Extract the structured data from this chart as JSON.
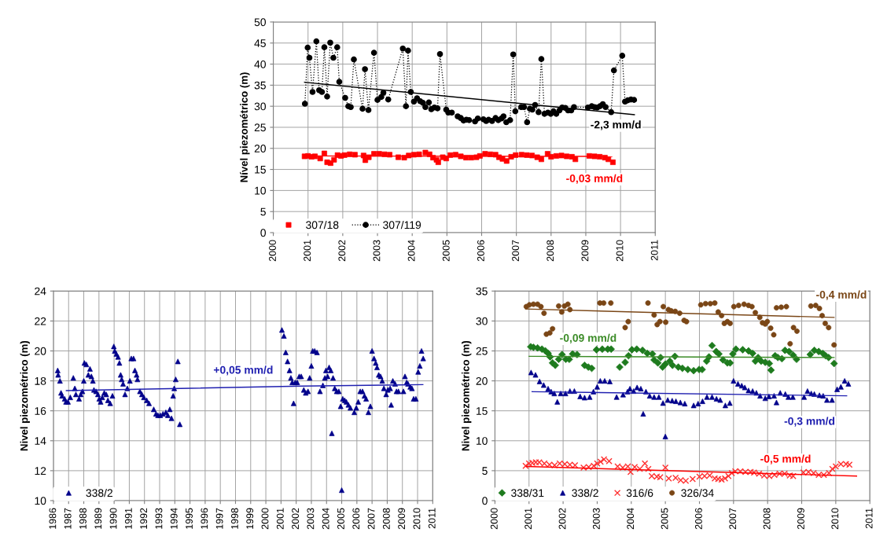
{
  "chart_data": [
    {
      "type": "scatter",
      "ylabel": "Nível piezométrico (m)",
      "xlim": [
        2000,
        2011
      ],
      "xticks": [
        2000,
        2001,
        2002,
        2003,
        2004,
        2005,
        2006,
        2007,
        2008,
        2009,
        2010,
        2011
      ],
      "ylim": [
        0,
        50
      ],
      "yticks": [
        0,
        5,
        10,
        15,
        20,
        25,
        30,
        35,
        40,
        45,
        50
      ],
      "grid": true,
      "legend": "bottom left",
      "series": [
        {
          "name": "307/18",
          "color": "#ff0000",
          "marker": "square",
          "x": [
            2000.9,
            2001.0,
            2001.1,
            2001.2,
            2001.35,
            2001.47,
            2001.55,
            2001.65,
            2001.75,
            2001.85,
            2001.95,
            2002.05,
            2002.2,
            2002.35,
            2002.6,
            2002.65,
            2002.75,
            2002.9,
            2003.05,
            2003.2,
            2003.35,
            2003.6,
            2003.77,
            2003.9,
            2004.05,
            2004.2,
            2004.38,
            2004.5,
            2004.6,
            2004.7,
            2004.75,
            2004.88,
            2004.98,
            2005.1,
            2005.25,
            2005.4,
            2005.55,
            2005.7,
            2005.85,
            2005.95,
            2006.1,
            2006.25,
            2006.4,
            2006.5,
            2006.6,
            2006.72,
            2006.85,
            2006.98,
            2007.15,
            2007.3,
            2007.45,
            2007.6,
            2007.72,
            2007.9,
            2008.0,
            2008.15,
            2008.3,
            2008.45,
            2008.6,
            2008.7,
            2009.1,
            2009.25,
            2009.4,
            2009.55,
            2009.65,
            2009.78
          ],
          "values": [
            18.1,
            18.2,
            18.0,
            18.1,
            17.6,
            18.8,
            16.7,
            16.5,
            17.3,
            18.4,
            18.2,
            18.4,
            18.6,
            18.5,
            18.3,
            17.2,
            17.9,
            18.7,
            18.7,
            18.6,
            18.5,
            17.9,
            17.8,
            18.3,
            18.5,
            18.6,
            19.0,
            18.6,
            17.8,
            17.3,
            16.7,
            17.9,
            17.6,
            18.4,
            18.5,
            18.1,
            17.8,
            17.8,
            17.9,
            18.2,
            18.7,
            18.6,
            18.5,
            17.9,
            17.5,
            17.0,
            18.0,
            18.4,
            18.5,
            18.4,
            18.3,
            17.9,
            17.4,
            18.7,
            18.0,
            18.2,
            18.3,
            18.1,
            18.0,
            17.4,
            18.2,
            18.1,
            18.0,
            17.8,
            17.4,
            16.7
          ]
        },
        {
          "name": "307/119",
          "type": "line",
          "color": "#000000",
          "marker": "circle",
          "line_style": "dotted",
          "x": [
            2000.91,
            2000.99,
            2001.04,
            2001.13,
            2001.24,
            2001.32,
            2001.4,
            2001.47,
            2001.55,
            2001.64,
            2001.73,
            2001.84,
            2001.9,
            2002.07,
            2002.16,
            2002.23,
            2002.32,
            2002.57,
            2002.64,
            2002.74,
            2002.9,
            2003.0,
            2003.11,
            2003.17,
            2003.31,
            2003.73,
            2003.82,
            2003.88,
            2003.96,
            2004.05,
            2004.14,
            2004.23,
            2004.31,
            2004.38,
            2004.48,
            2004.55,
            2004.64,
            2004.73,
            2004.8,
            2004.98,
            2005.04,
            2005.14,
            2005.31,
            2005.4,
            2005.48,
            2005.56,
            2005.64,
            2005.81,
            2005.89,
            2006.05,
            2006.13,
            2006.2,
            2006.3,
            2006.4,
            2006.48,
            2006.57,
            2006.63,
            2006.71,
            2006.82,
            2006.91,
            2006.97,
            2007.14,
            2007.22,
            2007.31,
            2007.39,
            2007.46,
            2007.54,
            2007.64,
            2007.72,
            2007.81,
            2007.91,
            2007.99,
            2008.07,
            2008.15,
            2008.24,
            2008.32,
            2008.41,
            2008.49,
            2008.58,
            2008.66,
            2009.06,
            2009.17,
            2009.25,
            2009.33,
            2009.41,
            2009.49,
            2009.57,
            2009.73,
            2009.81,
            2010.05,
            2010.13,
            2010.21,
            2010.3,
            2010.39
          ],
          "values": [
            30.6,
            43.9,
            41.5,
            33.4,
            45.4,
            33.8,
            33.4,
            44.0,
            32.3,
            45.1,
            41.5,
            44.0,
            35.8,
            32.0,
            30.0,
            29.8,
            41.1,
            29.4,
            38.8,
            29.1,
            42.7,
            31.5,
            32.2,
            33.2,
            31.6,
            43.7,
            30.0,
            43.2,
            33.4,
            31.1,
            31.9,
            31.2,
            30.8,
            29.8,
            30.9,
            29.3,
            29.7,
            29.5,
            42.4,
            29.2,
            28.5,
            28.5,
            27.6,
            27.2,
            26.6,
            26.8,
            26.7,
            26.4,
            27.1,
            26.9,
            26.5,
            26.8,
            26.5,
            27.2,
            26.7,
            27.1,
            27.6,
            26.2,
            26.7,
            42.3,
            28.8,
            29.8,
            29.8,
            26.2,
            29.4,
            29.2,
            30.3,
            28.6,
            41.2,
            28.2,
            28.5,
            28.2,
            28.8,
            28.2,
            29.0,
            29.7,
            29.6,
            29.0,
            29.0,
            29.8,
            29.7,
            30.0,
            29.8,
            29.7,
            30.0,
            30.5,
            29.8,
            28.6,
            38.5,
            42.0,
            31.1,
            31.4,
            31.6,
            31.5
          ]
        },
        {
          "name": "-2,3 mm/d",
          "type": "line",
          "color": "#000000",
          "marker": "none",
          "line_style": "solid",
          "x": [
            2000.9,
            2010.4
          ],
          "values": [
            35.7,
            28.0
          ]
        },
        {
          "name": "-0,03 mm/d",
          "type": "line",
          "color": "#ff0000",
          "marker": "none",
          "line_style": "solid",
          "x": [
            2000.9,
            2009.75
          ],
          "values": [
            18.2,
            18.1
          ]
        }
      ]
    },
    {
      "type": "scatter",
      "ylabel": "Nivel piezométrico (m)",
      "xlim": [
        1986,
        2011
      ],
      "xticks": [
        1986,
        1987,
        1988,
        1989,
        1990,
        1991,
        1992,
        1993,
        1994,
        1995,
        1996,
        1997,
        1998,
        1999,
        2000,
        2001,
        2002,
        2003,
        2004,
        2005,
        2006,
        2007,
        2008,
        2009,
        2010,
        2011
      ],
      "ylim": [
        10,
        24
      ],
      "yticks": [
        10,
        12,
        14,
        16,
        18,
        20,
        22,
        24
      ],
      "grid": true,
      "legend": "bottom left",
      "series": [
        {
          "name": "338/2",
          "color": "#00008b",
          "marker": "triangle",
          "x": [
            1986.28,
            1986.31,
            1986.43,
            1986.5,
            1986.57,
            1986.74,
            1986.83,
            1986.96,
            1987.11,
            1987.31,
            1987.41,
            1987.48,
            1987.69,
            1987.8,
            1987.91,
            1988.0,
            1988.04,
            1988.17,
            1988.3,
            1988.41,
            1988.5,
            1988.6,
            1988.67,
            1988.81,
            1988.93,
            1989.02,
            1989.11,
            1989.22,
            1989.35,
            1989.48,
            1989.59,
            1989.74,
            1989.89,
            1989.98,
            1990.04,
            1990.15,
            1990.26,
            1990.35,
            1990.43,
            1990.5,
            1990.59,
            1990.72,
            1990.87,
            1991.04,
            1991.13,
            1991.28,
            1991.37,
            1991.48,
            1991.54,
            1991.7,
            1991.83,
            1991.96,
            1992.15,
            1992.3,
            1992.61,
            1992.76,
            1992.89,
            1993.04,
            1993.22,
            1993.41,
            1993.54,
            1993.67,
            1993.78,
            1993.89,
            1993.96,
            1994.06,
            1994.2,
            1994.33,
            2001.06,
            2001.19,
            2001.31,
            2001.43,
            2001.56,
            2001.65,
            2001.74,
            2001.83,
            2001.93,
            2002.07,
            2002.2,
            2002.33,
            2002.5,
            2002.63,
            2002.78,
            2002.89,
            2003.0,
            2003.09,
            2003.22,
            2003.37,
            2003.57,
            2003.76,
            2003.89,
            2003.96,
            2004.07,
            2004.17,
            2004.28,
            2004.35,
            2004.43,
            2004.54,
            2004.67,
            2004.81,
            2004.93,
            2005.0,
            2005.07,
            2005.2,
            2005.31,
            2005.44,
            2005.57,
            2005.83,
            2005.96,
            2006.09,
            2006.22,
            2006.37,
            2006.5,
            2006.61,
            2006.76,
            2006.89,
            2007.0,
            2007.13,
            2007.24,
            2007.33,
            2007.44,
            2007.56,
            2007.67,
            2007.78,
            2007.93,
            2008.04,
            2008.19,
            2008.26,
            2008.37,
            2008.52,
            2008.61,
            2008.74,
            2009.07,
            2009.17,
            2009.28,
            2009.37,
            2009.52,
            2009.63,
            2009.74,
            2009.89,
            2010.04,
            2010.15,
            2010.26,
            2010.37
          ],
          "values": [
            18.7,
            18.4,
            18.0,
            17.2,
            17.0,
            16.8,
            16.6,
            16.6,
            16.9,
            18.2,
            17.5,
            17.1,
            16.8,
            17.1,
            17.3,
            18.0,
            19.2,
            19.1,
            18.4,
            18.8,
            18.3,
            18.0,
            17.4,
            17.3,
            17.1,
            16.8,
            16.6,
            16.9,
            17.2,
            17.1,
            16.7,
            16.5,
            17.0,
            20.3,
            20.0,
            19.8,
            19.6,
            19.2,
            18.4,
            18.1,
            17.8,
            17.1,
            17.5,
            18.0,
            19.5,
            19.5,
            18.7,
            18.4,
            18.1,
            17.3,
            17.1,
            16.9,
            16.7,
            16.5,
            16.1,
            15.8,
            15.7,
            15.7,
            15.8,
            15.9,
            15.7,
            16.1,
            15.5,
            17.0,
            17.5,
            18.1,
            19.3,
            15.1,
            21.4,
            21.0,
            19.9,
            19.3,
            18.7,
            18.2,
            17.9,
            16.5,
            17.9,
            17.9,
            18.3,
            18.3,
            17.4,
            17.2,
            17.3,
            18.2,
            19.0,
            20.0,
            20.0,
            19.9,
            17.3,
            17.7,
            18.2,
            18.7,
            18.3,
            18.9,
            18.7,
            14.5,
            18.2,
            17.5,
            17.3,
            17.3,
            16.3,
            10.7,
            16.8,
            16.7,
            16.6,
            16.4,
            16.2,
            15.9,
            16.2,
            16.6,
            17.3,
            17.3,
            17.0,
            16.8,
            15.9,
            16.3,
            20.0,
            19.5,
            19.2,
            18.9,
            18.4,
            18.3,
            18.0,
            17.5,
            17.1,
            17.4,
            17.5,
            16.4,
            18.0,
            17.8,
            17.3,
            17.3,
            17.3,
            18.3,
            17.9,
            17.8,
            17.6,
            17.5,
            16.8,
            16.8,
            18.6,
            19.0,
            20.0,
            19.5
          ]
        },
        {
          "name": "+0,05 mm/d",
          "type": "line",
          "color": "#2020b0",
          "marker": "none",
          "line_style": "solid",
          "x": [
            1986.85,
            2002.4,
            2010.35
          ],
          "values": [
            17.35,
            17.65,
            17.75
          ]
        }
      ]
    },
    {
      "type": "scatter",
      "ylabel": "Nivel piezométrico (m)",
      "xlim": [
        2000,
        2011
      ],
      "xticks": [
        2000,
        2001,
        2002,
        2003,
        2004,
        2005,
        2006,
        2007,
        2008,
        2009,
        2010,
        2011
      ],
      "ylim": [
        0,
        35
      ],
      "yticks": [
        0,
        5,
        10,
        15,
        20,
        25,
        30,
        35
      ],
      "grid": true,
      "legend": "bottom left",
      "series": [
        {
          "name": "338/31",
          "color": "#1e7b1e",
          "marker": "diamond",
          "x": [
            2001.05,
            2001.13,
            2001.25,
            2001.38,
            2001.48,
            2001.56,
            2001.62,
            2001.69,
            2001.77,
            2001.87,
            2001.97,
            2002.08,
            2002.18,
            2002.28,
            2002.41,
            2002.63,
            2002.74,
            2002.84,
            2002.98,
            2003.15,
            2003.31,
            2003.41,
            2003.66,
            2003.82,
            2003.92,
            2004.02,
            2004.16,
            2004.33,
            2004.47,
            2004.62,
            2004.67,
            2004.78,
            2004.86,
            2004.92,
            2005.0,
            2005.13,
            2005.21,
            2005.28,
            2005.38,
            2005.5,
            2005.66,
            2005.83,
            2005.99,
            2006.08,
            2006.21,
            2006.28,
            2006.37,
            2006.49,
            2006.57,
            2006.69,
            2006.82,
            2006.9,
            2006.98,
            2007.07,
            2007.27,
            2007.44,
            2007.56,
            2007.64,
            2007.72,
            2007.81,
            2007.93,
            2008.05,
            2008.1,
            2008.22,
            2008.3,
            2008.42,
            2008.51,
            2008.63,
            2008.75,
            2008.85,
            2009.25,
            2009.37,
            2009.5,
            2009.62,
            2009.7,
            2009.79,
            2009.95
          ],
          "values": [
            25.7,
            25.6,
            25.5,
            25.3,
            25.0,
            24.6,
            24.0,
            23.0,
            22.6,
            23.6,
            24.4,
            23.6,
            23.6,
            24.5,
            24.4,
            22.6,
            22.3,
            22.1,
            25.2,
            25.3,
            25.3,
            25.3,
            22.3,
            23.1,
            24.2,
            25.2,
            25.3,
            25.1,
            24.6,
            24.5,
            23.5,
            23.0,
            23.9,
            22.3,
            22.8,
            23.3,
            22.6,
            24.1,
            22.3,
            22.1,
            21.9,
            21.7,
            21.9,
            21.9,
            23.3,
            24.0,
            25.9,
            24.9,
            24.5,
            23.5,
            23.0,
            23.0,
            24.5,
            25.3,
            25.2,
            25.0,
            24.6,
            23.3,
            23.9,
            23.3,
            23.1,
            22.9,
            21.8,
            24.2,
            23.9,
            23.7,
            25.1,
            24.9,
            24.3,
            23.6,
            24.4,
            25.1,
            24.9,
            24.6,
            24.2,
            23.9,
            22.9
          ]
        },
        {
          "name": "338/2",
          "color": "#00008b",
          "marker": "triangle",
          "x": [
            2001.06,
            2001.19,
            2001.31,
            2001.43,
            2001.56,
            2001.65,
            2001.74,
            2001.83,
            2001.93,
            2002.07,
            2002.2,
            2002.33,
            2002.5,
            2002.63,
            2002.78,
            2002.89,
            2003.0,
            2003.09,
            2003.22,
            2003.37,
            2003.57,
            2003.76,
            2003.89,
            2003.96,
            2004.07,
            2004.17,
            2004.28,
            2004.35,
            2004.43,
            2004.54,
            2004.67,
            2004.81,
            2004.93,
            2005.0,
            2005.07,
            2005.2,
            2005.31,
            2005.44,
            2005.57,
            2005.83,
            2005.96,
            2006.09,
            2006.22,
            2006.37,
            2006.5,
            2006.61,
            2006.76,
            2006.89,
            2007.0,
            2007.13,
            2007.24,
            2007.33,
            2007.44,
            2007.56,
            2007.67,
            2007.78,
            2007.93,
            2008.04,
            2008.19,
            2008.26,
            2008.37,
            2008.52,
            2008.61,
            2008.74,
            2009.07,
            2009.17,
            2009.28,
            2009.37,
            2009.52,
            2009.63,
            2009.74,
            2009.89,
            2010.04,
            2010.15,
            2010.26,
            2010.37
          ],
          "values": [
            21.4,
            21.0,
            19.9,
            19.3,
            18.7,
            18.2,
            17.9,
            16.5,
            17.9,
            17.9,
            18.3,
            18.3,
            17.4,
            17.2,
            17.3,
            18.2,
            19.0,
            20.0,
            20.0,
            19.9,
            17.3,
            17.7,
            18.2,
            18.7,
            18.3,
            18.9,
            18.7,
            14.5,
            18.2,
            17.5,
            17.3,
            17.3,
            16.3,
            10.7,
            16.8,
            16.7,
            16.6,
            16.4,
            16.2,
            15.9,
            16.2,
            16.6,
            17.3,
            17.3,
            17.0,
            16.8,
            15.9,
            16.3,
            20.0,
            19.5,
            19.2,
            18.9,
            18.4,
            18.3,
            18.0,
            17.5,
            17.1,
            17.4,
            17.5,
            16.4,
            18.0,
            17.8,
            17.3,
            17.3,
            17.3,
            18.3,
            17.9,
            17.8,
            17.6,
            17.5,
            16.8,
            16.8,
            18.6,
            19.0,
            20.0,
            19.5
          ]
        },
        {
          "name": "316/6",
          "color": "#ff3030",
          "marker": "cross",
          "x": [
            2000.9,
            2001.0,
            2001.1,
            2001.2,
            2001.3,
            2001.45,
            2001.6,
            2001.75,
            2001.9,
            2002.05,
            2002.2,
            2002.35,
            2002.6,
            2002.75,
            2002.9,
            2003.0,
            2003.1,
            2003.2,
            2003.35,
            2003.6,
            2003.75,
            2003.9,
            2003.98,
            2004.1,
            2004.25,
            2004.4,
            2004.5,
            2004.6,
            2004.75,
            2004.85,
            2005.0,
            2005.1,
            2005.3,
            2005.45,
            2005.6,
            2005.8,
            2006.0,
            2006.15,
            2006.3,
            2006.45,
            2006.55,
            2006.65,
            2006.75,
            2006.85,
            2006.95,
            2007.05,
            2007.2,
            2007.35,
            2007.5,
            2007.6,
            2007.75,
            2007.9,
            2008.05,
            2008.2,
            2008.35,
            2008.5,
            2008.65,
            2008.75,
            2009.05,
            2009.2,
            2009.35,
            2009.5,
            2009.65,
            2009.8,
            2009.9,
            2010.0,
            2010.15,
            2010.3,
            2010.4
          ],
          "values": [
            5.8,
            6.2,
            6.3,
            6.4,
            6.4,
            6.2,
            6.0,
            5.9,
            6.2,
            6.1,
            6.0,
            5.9,
            5.5,
            5.6,
            5.8,
            6.2,
            6.5,
            6.9,
            6.6,
            5.7,
            5.5,
            5.7,
            4.8,
            5.6,
            5.3,
            6.2,
            5.3,
            4.1,
            4.0,
            3.9,
            5.5,
            3.7,
            3.8,
            3.4,
            3.3,
            3.6,
            4.0,
            4.1,
            4.2,
            3.7,
            3.6,
            3.5,
            3.7,
            4.1,
            4.6,
            4.9,
            4.9,
            4.8,
            4.8,
            4.7,
            4.5,
            4.2,
            4.1,
            4.3,
            4.5,
            4.5,
            4.2,
            4.1,
            4.7,
            4.8,
            4.6,
            4.3,
            4.3,
            4.6,
            5.3,
            5.7,
            6.1,
            6.1,
            6.0
          ]
        },
        {
          "name": "326/34",
          "color": "#7a4616",
          "marker": "circle",
          "x": [
            2000.92,
            2001.01,
            2001.13,
            2001.25,
            2001.35,
            2001.44,
            2001.51,
            2001.61,
            2001.69,
            2001.87,
            2001.96,
            2002.04,
            2002.14,
            2002.2,
            2003.08,
            2003.19,
            2003.4,
            2003.82,
            2003.91,
            2004.49,
            2004.67,
            2004.76,
            2004.84,
            2004.94,
            2005.01,
            2005.09,
            2005.17,
            2005.29,
            2005.42,
            2005.55,
            2005.62,
            2006.04,
            2006.18,
            2006.32,
            2006.45,
            2006.55,
            2006.65,
            2006.73,
            2006.82,
            2006.9,
            2007.01,
            2007.15,
            2007.31,
            2007.44,
            2007.54,
            2007.64,
            2007.77,
            2007.85,
            2007.93,
            2007.99,
            2008.09,
            2008.18,
            2008.26,
            2008.4,
            2008.55,
            2008.66,
            2008.76,
            2008.86,
            2009.27,
            2009.41,
            2009.52,
            2009.6,
            2009.69,
            2009.79,
            2009.95
          ],
          "values": [
            32.4,
            32.7,
            32.8,
            32.8,
            32.4,
            31.3,
            27.8,
            28.0,
            28.7,
            32.5,
            31.5,
            32.5,
            32.8,
            31.9,
            33.0,
            33.0,
            33.0,
            28.9,
            29.9,
            33.0,
            31.0,
            29.4,
            29.9,
            32.4,
            29.8,
            31.9,
            31.7,
            31.6,
            31.3,
            30.1,
            29.9,
            32.7,
            32.9,
            32.9,
            33.0,
            31.5,
            30.9,
            29.6,
            29.9,
            29.6,
            32.4,
            32.6,
            32.8,
            32.6,
            32.4,
            31.4,
            30.6,
            29.7,
            29.5,
            29.9,
            28.8,
            27.7,
            32.2,
            32.3,
            32.4,
            26.2,
            28.9,
            28.3,
            32.5,
            32.6,
            32.1,
            30.9,
            29.6,
            28.9,
            26.0
          ]
        },
        {
          "name": "-0,4 mm/d",
          "type": "line",
          "color": "#7a4616",
          "marker": "none",
          "line_style": "solid",
          "x": [
            2000.9,
            2009.95
          ],
          "values": [
            32.0,
            30.6
          ]
        },
        {
          "name": "-0,09 mm/d",
          "type": "line",
          "color": "#3c8c28",
          "marker": "none",
          "line_style": "solid",
          "x": [
            2001.0,
            2009.95
          ],
          "values": [
            24.1,
            23.9
          ]
        },
        {
          "name": "-0,3 mm/d",
          "type": "line",
          "color": "#2020b0",
          "marker": "none",
          "line_style": "solid",
          "x": [
            2001.09,
            2010.32
          ],
          "values": [
            18.2,
            17.5
          ]
        },
        {
          "name": "-0,5 mm/d",
          "type": "line",
          "color": "#ff0000",
          "marker": "none",
          "line_style": "solid",
          "x": [
            2000.92,
            2010.61
          ],
          "values": [
            5.7,
            4.1
          ]
        }
      ]
    }
  ]
}
